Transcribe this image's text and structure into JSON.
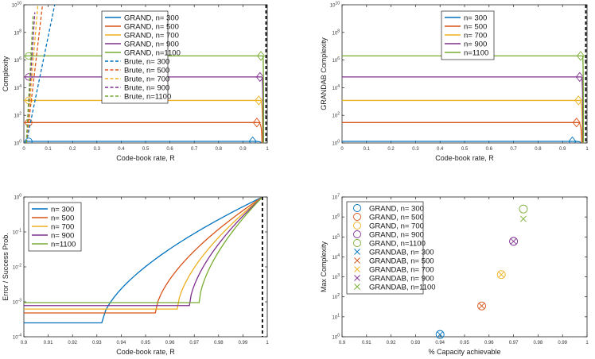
{
  "colors": {
    "c300": "#0072BD",
    "c500": "#D95319",
    "c700": "#EDB120",
    "c900": "#7E2F8E",
    "c1100": "#77AC30"
  },
  "chart_data": [
    {
      "id": "p1",
      "type": "line",
      "xlabel": "Code-book rate, R",
      "ylabel": "Complexity",
      "xlim": [
        0,
        1
      ],
      "ylim": [
        1,
        10000000000
      ],
      "yscale": "log",
      "x_ticks": [
        "0",
        "0.1",
        "0.2",
        "0.3",
        "0.4",
        "0.5",
        "0.6",
        "0.7",
        "0.8",
        "0.9",
        "1"
      ],
      "y_ticks": [
        "10^0",
        "10^2",
        "10^4",
        "10^6",
        "10^8",
        "10^10"
      ],
      "capacity_line_x": 0.995,
      "legend": [
        "GRAND, n= 300",
        "GRAND, n= 500",
        "GRAND, n= 700",
        "GRAND, n= 900",
        "GRAND, n=1100",
        "Brute, n= 300",
        "Brute, n= 500",
        "Brute, n= 700",
        "Brute, n= 900",
        "Brute, n=1100"
      ],
      "legend_position": "top-center",
      "series": [
        {
          "name": "GRAND, n= 300",
          "style": "solid",
          "plateau": 1.3,
          "x_end": 0.975,
          "marker_start": 0.02,
          "marker_end": 0.94
        },
        {
          "name": "GRAND, n= 500",
          "style": "solid",
          "plateau": 30,
          "x_end": 0.978,
          "marker_start": 0.02,
          "marker_end": 0.957
        },
        {
          "name": "GRAND, n= 700",
          "style": "solid",
          "plateau": 1200,
          "x_end": 0.981,
          "marker_start": 0.02,
          "marker_end": 0.965
        },
        {
          "name": "GRAND, n= 900",
          "style": "solid",
          "plateau": 60000,
          "x_end": 0.983,
          "marker_start": 0.02,
          "marker_end": 0.97
        },
        {
          "name": "GRAND, n=1100",
          "style": "solid",
          "plateau": 2000000,
          "x_end": 0.985,
          "marker_start": 0.02,
          "marker_end": 0.974
        },
        {
          "name": "Brute, n= 300",
          "style": "dashed",
          "x_range": [
            0.01,
            0.15
          ],
          "exponent_per_unit_rate": 90
        },
        {
          "name": "Brute, n= 500",
          "style": "dashed",
          "x_range": [
            0.01,
            0.08
          ],
          "exponent_per_unit_rate": 150
        },
        {
          "name": "Brute, n= 700",
          "style": "dashed",
          "x_range": [
            0.01,
            0.06
          ],
          "exponent_per_unit_rate": 210
        },
        {
          "name": "Brute, n= 900",
          "style": "dashed",
          "x_range": [
            0.01,
            0.045
          ],
          "exponent_per_unit_rate": 270
        },
        {
          "name": "Brute, n=1100",
          "style": "dashed",
          "x_range": [
            0.01,
            0.038
          ],
          "exponent_per_unit_rate": 330
        }
      ]
    },
    {
      "id": "p2",
      "type": "line",
      "xlabel": "Code-book rate, R",
      "ylabel": "GRANDAB Complexity",
      "xlim": [
        0,
        1
      ],
      "ylim": [
        1,
        10000000000
      ],
      "yscale": "log",
      "x_ticks": [
        "0",
        "0.1",
        "0.2",
        "0.3",
        "0.4",
        "0.5",
        "0.6",
        "0.7",
        "0.8",
        "0.9",
        "1"
      ],
      "y_ticks": [
        "10^0",
        "10^2",
        "10^4",
        "10^6",
        "10^8",
        "10^10"
      ],
      "capacity_line_x": 0.995,
      "legend": [
        "n= 300",
        "n= 500",
        "n= 700",
        "n= 900",
        "n=1100"
      ],
      "legend_position": "top-center",
      "series": [
        {
          "name": "n= 300",
          "plateau": 1.3,
          "x_end": 0.975,
          "marker_end": 0.94
        },
        {
          "name": "n= 500",
          "plateau": 30,
          "x_end": 0.978,
          "marker_end": 0.957
        },
        {
          "name": "n= 700",
          "plateau": 1200,
          "x_end": 0.981,
          "marker_end": 0.965
        },
        {
          "name": "n= 900",
          "plateau": 60000,
          "x_end": 0.983,
          "marker_end": 0.97
        },
        {
          "name": "n=1100",
          "plateau": 2000000,
          "x_end": 0.985,
          "marker_end": 0.974
        }
      ]
    },
    {
      "id": "p3",
      "type": "line",
      "xlabel": "Code-book rate, R",
      "ylabel": "Error / Success Prob.",
      "xlim": [
        0.9,
        1
      ],
      "ylim": [
        0.0001,
        1
      ],
      "yscale": "log",
      "x_ticks": [
        "0.9",
        "0.91",
        "0.92",
        "0.93",
        "0.94",
        "0.95",
        "0.96",
        "0.97",
        "0.98",
        "0.99",
        "1"
      ],
      "y_ticks": [
        "10^-4",
        "10^-3",
        "10^-2",
        "10^-1",
        "10^0"
      ],
      "capacity_line_x": 0.998,
      "legend": [
        "n= 300",
        "n= 500",
        "n= 700",
        "n= 900",
        "n=1100"
      ],
      "legend_position": "top-left",
      "series": [
        {
          "name": "n= 300",
          "floor": 0.00025,
          "knee": 0.932,
          "end": 0.998
        },
        {
          "name": "n= 500",
          "floor": 0.00048,
          "knee": 0.954,
          "end": 0.998
        },
        {
          "name": "n= 700",
          "floor": 0.00062,
          "knee": 0.963,
          "end": 0.998
        },
        {
          "name": "n= 900",
          "floor": 0.00078,
          "knee": 0.968,
          "end": 0.998
        },
        {
          "name": "n=1100",
          "floor": 0.00095,
          "knee": 0.972,
          "end": 0.998
        }
      ]
    },
    {
      "id": "p4",
      "type": "scatter",
      "xlabel": "% Capacity achievable",
      "ylabel": "Max Complexity",
      "xlim": [
        0.9,
        1
      ],
      "ylim": [
        1,
        10000000
      ],
      "yscale": "log",
      "x_ticks": [
        "0.9",
        "0.91",
        "0.92",
        "0.93",
        "0.94",
        "0.95",
        "0.96",
        "0.97",
        "0.98",
        "0.99",
        "1"
      ],
      "y_ticks": [
        "10^0",
        "10^1",
        "10^2",
        "10^3",
        "10^4",
        "10^5",
        "10^6",
        "10^7"
      ],
      "legend": [
        "GRAND, n= 300",
        "GRAND, n= 500",
        "GRAND, n= 700",
        "GRAND, n= 900",
        "GRAND, n=1100",
        "GRANDAB, n= 300",
        "GRANDAB, n= 500",
        "GRANDAB, n= 700",
        "GRANDAB, n= 900",
        "GRANDAB, n=1100"
      ],
      "legend_position": "top-left",
      "series": [
        {
          "name": "GRAND, n= 300",
          "marker": "circle",
          "x": 0.94,
          "y": 1.3
        },
        {
          "name": "GRAND, n= 500",
          "marker": "circle",
          "x": 0.957,
          "y": 35
        },
        {
          "name": "GRAND, n= 700",
          "marker": "circle",
          "x": 0.965,
          "y": 1300
        },
        {
          "name": "GRAND, n= 900",
          "marker": "circle",
          "x": 0.97,
          "y": 60000
        },
        {
          "name": "GRAND, n=1100",
          "marker": "circle",
          "x": 0.974,
          "y": 2500000
        },
        {
          "name": "GRANDAB, n= 300",
          "marker": "x",
          "x": 0.94,
          "y": 1.3
        },
        {
          "name": "GRANDAB, n= 500",
          "marker": "x",
          "x": 0.957,
          "y": 35
        },
        {
          "name": "GRANDAB, n= 700",
          "marker": "x",
          "x": 0.965,
          "y": 1300
        },
        {
          "name": "GRANDAB, n= 900",
          "marker": "x",
          "x": 0.97,
          "y": 60000
        },
        {
          "name": "GRANDAB, n=1100",
          "marker": "x",
          "x": 0.974,
          "y": 800000
        }
      ]
    }
  ]
}
